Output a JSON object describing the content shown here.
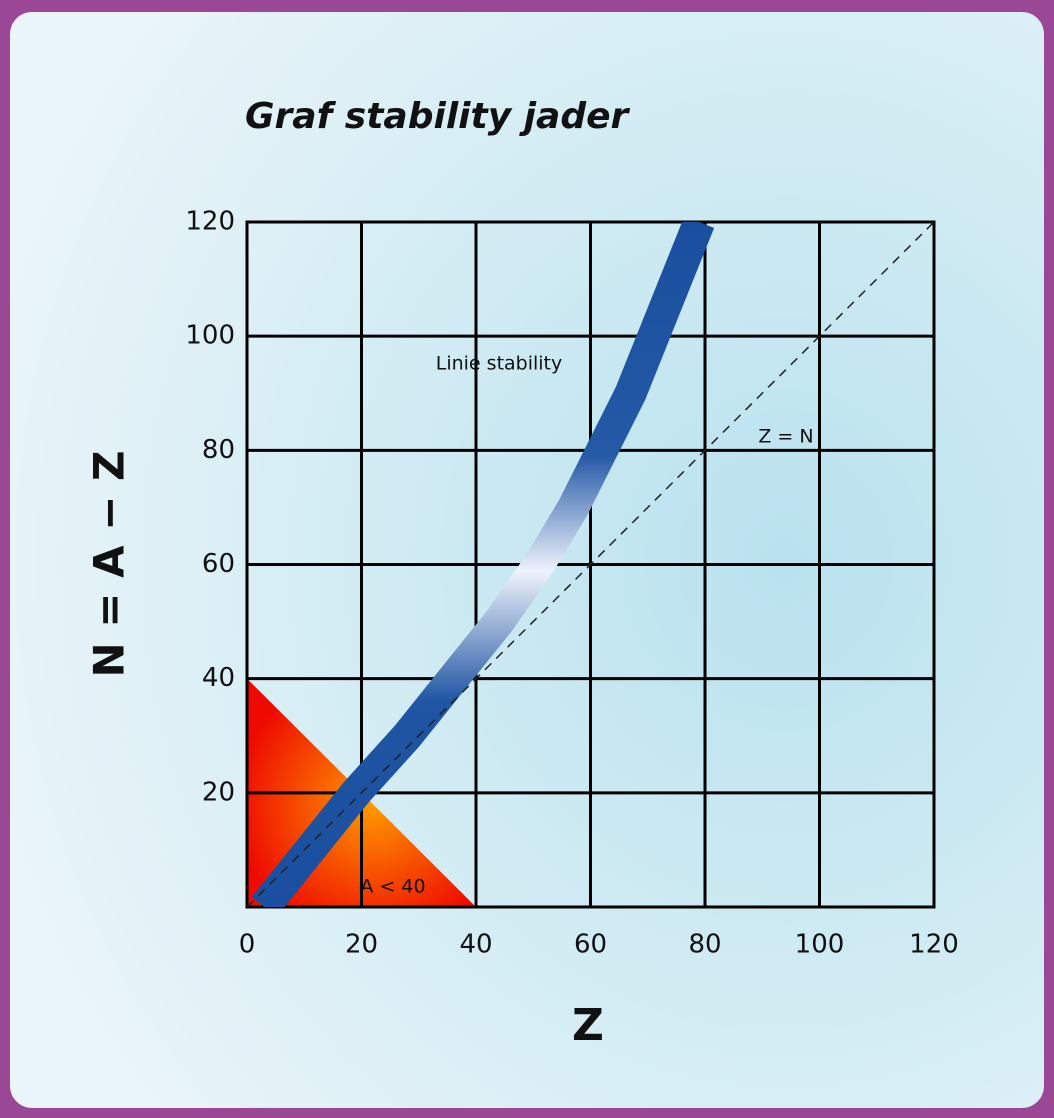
{
  "chart_data": {
    "type": "line",
    "title": "Graf stability jader",
    "xlabel": "Z",
    "ylabel": "N = A − Z",
    "xlim": [
      0,
      120
    ],
    "ylim": [
      0,
      120
    ],
    "xticks": [
      0,
      20,
      40,
      60,
      80,
      100,
      120
    ],
    "yticks": [
      20,
      40,
      60,
      80,
      100,
      120
    ],
    "grid": true,
    "series": [
      {
        "name": "Linie stability",
        "color": "#1a4f9f",
        "style": "band",
        "x": [
          3,
          11,
          19,
          28,
          36,
          44,
          51,
          57,
          62,
          67,
          71,
          75,
          79
        ],
        "values": [
          0,
          10,
          20,
          30,
          40,
          50,
          60,
          70,
          80,
          90,
          100,
          110,
          120
        ]
      },
      {
        "name": "Z = N",
        "color": "#222222",
        "style": "dashed",
        "x": [
          0,
          120
        ],
        "values": [
          0,
          120
        ]
      }
    ],
    "region": {
      "label": "A < 40",
      "color": "#ff2a00",
      "x": [
        0,
        0,
        40
      ],
      "values": [
        0,
        40,
        0
      ]
    }
  }
}
